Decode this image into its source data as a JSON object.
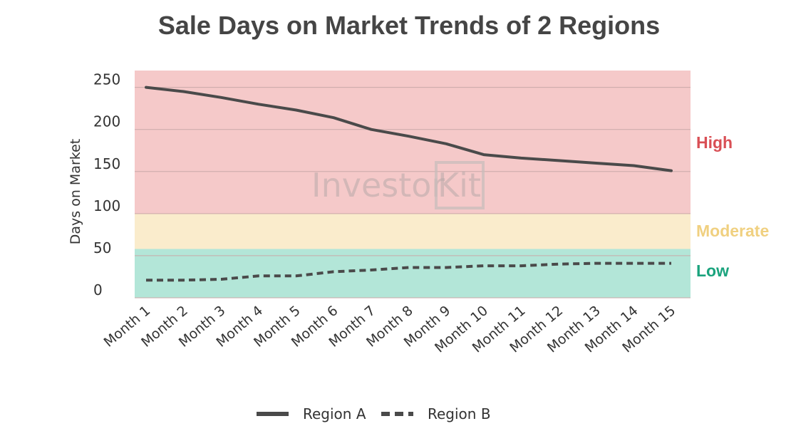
{
  "chart_data": {
    "type": "line",
    "title": "Sale Days on Market Trends of 2 Regions",
    "xlabel": "",
    "ylabel": "Days on Market",
    "ylim": [
      0,
      270
    ],
    "yticks": [
      0,
      50,
      100,
      150,
      200,
      250
    ],
    "categories": [
      "Month 1",
      "Month 2",
      "Month 3",
      "Month 4",
      "Month 5",
      "Month 6",
      "Month 7",
      "Month 8",
      "Month 9",
      "Month 10",
      "Month 11",
      "Month 12",
      "Month 13",
      "Month 14",
      "Month 15"
    ],
    "series": [
      {
        "name": "Region A",
        "style": "solid",
        "values": [
          250,
          245,
          238,
          230,
          223,
          214,
          200,
          192,
          183,
          170,
          166,
          163,
          160,
          157,
          151
        ]
      },
      {
        "name": "Region B",
        "style": "dashed",
        "values": [
          21,
          21,
          22,
          26,
          26,
          31,
          33,
          36,
          36,
          38,
          38,
          40,
          41,
          41,
          41
        ]
      }
    ],
    "bands": [
      {
        "label": "High",
        "from": 100,
        "to": 270,
        "fill": "#f5c9c9",
        "label_color": "#d94f55"
      },
      {
        "label": "Moderate",
        "from": 58,
        "to": 100,
        "fill": "#faeccc",
        "label_color": "#f0d080"
      },
      {
        "label": "Low",
        "from": 0,
        "to": 58,
        "fill": "#b3e6d8",
        "label_color": "#1aa37d"
      }
    ],
    "line_color": "#4a4a4a",
    "watermark": "Investor Kit",
    "legend_position": "bottom"
  }
}
